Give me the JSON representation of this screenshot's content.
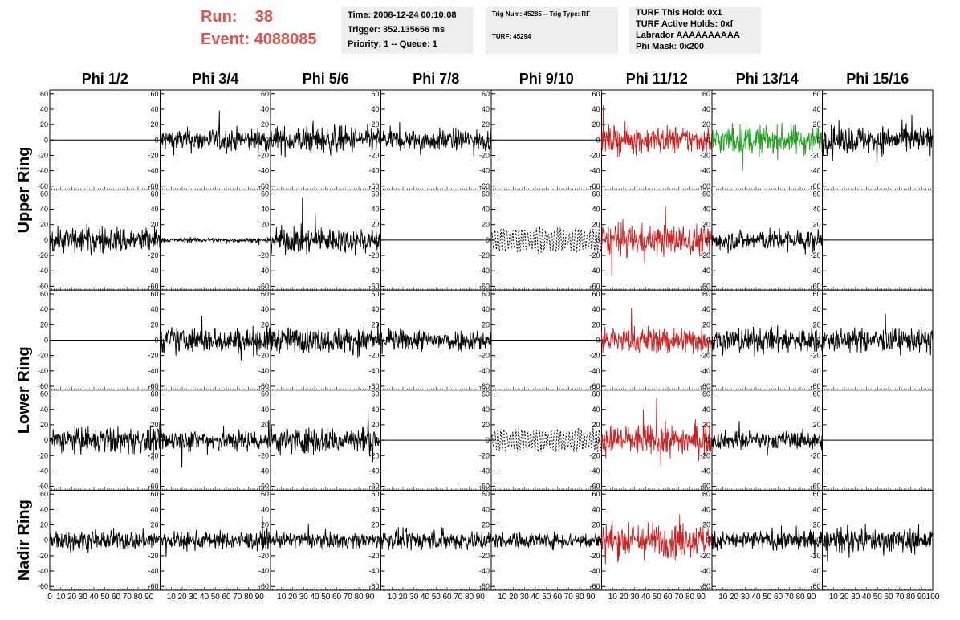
{
  "header": {
    "run_label": "Run:",
    "run_value": "38",
    "event_label": "Event:",
    "event_value": "4088085",
    "time": "Time: 2008-12-24 00:10:08",
    "trigger": "Trigger: 352.135656 ms",
    "priority": "Priority: 1 -- Queue: 1",
    "trig_num": "Trig Num: 45285 -- Trig Type: RF",
    "turf": "TURF: 45294",
    "turf_this_hold": "TURF This Hold: 0x1",
    "turf_active_holds": "TURF Active Holds: 0xf",
    "labrador": "Labrador AAAAAAAAAA",
    "phi_mask": "Phi Mask: 0x200",
    "accent_color": "#d9534f"
  },
  "chart_data": {
    "type": "line",
    "title": "",
    "column_labels": [
      "Phi 1/2",
      "Phi 3/4",
      "Phi 5/6",
      "Phi 7/8",
      "Phi 9/10",
      "Phi 11/12",
      "Phi 13/14",
      "Phi 15/16"
    ],
    "ring_labels": [
      "Upper Ring",
      "Lower Ring",
      "Nadir Ring"
    ],
    "xlim": [
      0,
      100
    ],
    "ylim": [
      -65,
      65
    ],
    "x_ticks": [
      "0",
      "10",
      "20",
      "30",
      "40",
      "50",
      "60",
      "70",
      "80",
      "90",
      "100"
    ],
    "y_ticks": [
      "60",
      "40",
      "20",
      "0",
      "-20",
      "-40",
      "-60"
    ],
    "rows": [
      [
        {
          "style": "flat",
          "color": "#000000"
        },
        {
          "style": "noise",
          "amplitude": 12,
          "color": "#000000"
        },
        {
          "style": "noise",
          "amplitude": 14,
          "color": "#000000"
        },
        {
          "style": "noise",
          "amplitude": 11,
          "color": "#000000"
        },
        {
          "style": "flat",
          "color": "#000000"
        },
        {
          "style": "noise",
          "amplitude": 14,
          "color": "#cc2222"
        },
        {
          "style": "noise",
          "amplitude": 15,
          "color": "#22a022"
        },
        {
          "style": "noise",
          "amplitude": 14,
          "color": "#000000"
        }
      ],
      [
        {
          "style": "noise",
          "amplitude": 14,
          "color": "#000000"
        },
        {
          "style": "noise",
          "amplitude": 2.5,
          "color": "#000000"
        },
        {
          "style": "noise",
          "amplitude": 13,
          "color": "#000000"
        },
        {
          "style": "flat",
          "color": "#000000"
        },
        {
          "style": "dashed",
          "amplitude": 16,
          "color": "#000000"
        },
        {
          "style": "noise",
          "amplitude": 16,
          "color": "#cc2222"
        },
        {
          "style": "noise",
          "amplitude": 11,
          "color": "#000000"
        },
        {
          "style": "flat",
          "color": "#000000"
        }
      ],
      [
        {
          "style": "flat",
          "color": "#000000"
        },
        {
          "style": "noise",
          "amplitude": 13,
          "color": "#000000"
        },
        {
          "style": "noise",
          "amplitude": 13,
          "color": "#000000"
        },
        {
          "style": "noise",
          "amplitude": 11,
          "color": "#000000"
        },
        {
          "style": "flat",
          "color": "#000000"
        },
        {
          "style": "noise",
          "amplitude": 14,
          "color": "#cc2222"
        },
        {
          "style": "noise",
          "amplitude": 13,
          "color": "#000000"
        },
        {
          "style": "noise",
          "amplitude": 12,
          "color": "#000000"
        }
      ],
      [
        {
          "style": "noise",
          "amplitude": 13,
          "color": "#000000"
        },
        {
          "style": "noise",
          "amplitude": 11,
          "color": "#000000"
        },
        {
          "style": "noise",
          "amplitude": 14,
          "color": "#000000"
        },
        {
          "style": "flat",
          "color": "#000000"
        },
        {
          "style": "dashed",
          "amplitude": 15,
          "color": "#000000"
        },
        {
          "style": "noise",
          "amplitude": 16,
          "color": "#cc2222"
        },
        {
          "style": "noise",
          "amplitude": 9,
          "color": "#000000"
        },
        {
          "style": "flat",
          "color": "#000000"
        }
      ],
      [
        {
          "style": "noise",
          "amplitude": 10,
          "color": "#000000"
        },
        {
          "style": "noise",
          "amplitude": 9,
          "color": "#000000"
        },
        {
          "style": "noise",
          "amplitude": 8,
          "color": "#000000"
        },
        {
          "style": "noise",
          "amplitude": 10,
          "color": "#000000"
        },
        {
          "style": "noise",
          "amplitude": 8,
          "color": "#000000"
        },
        {
          "style": "noise",
          "amplitude": 18,
          "color": "#cc2222"
        },
        {
          "style": "noise",
          "amplitude": 10,
          "color": "#000000"
        },
        {
          "style": "noise",
          "amplitude": 12,
          "color": "#000000"
        }
      ]
    ]
  }
}
